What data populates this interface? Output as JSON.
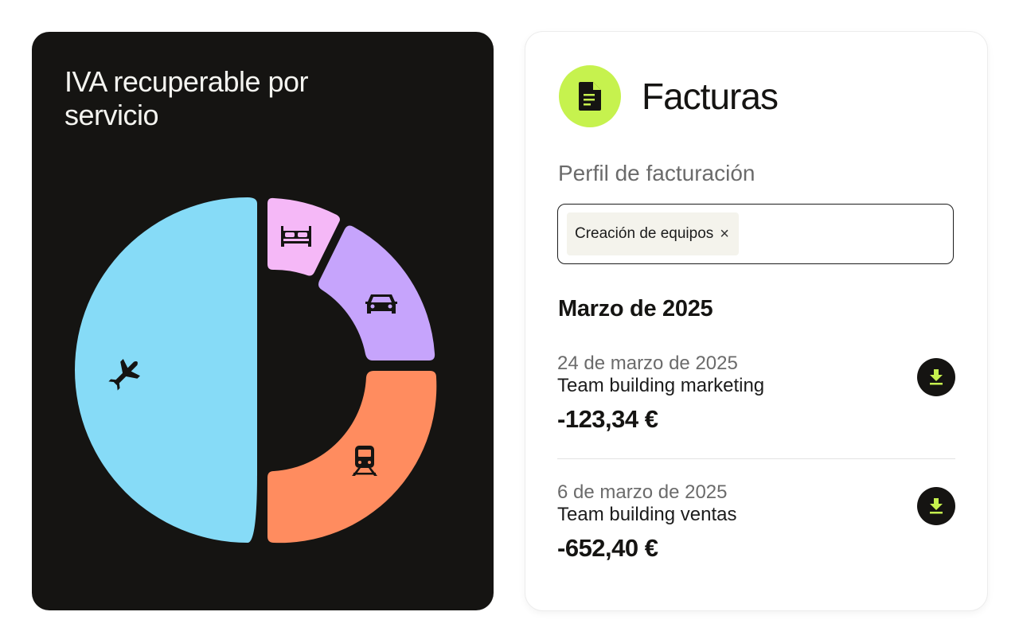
{
  "left_card": {
    "title": "IVA recuperable por servicio",
    "chart_data": {
      "type": "pie",
      "donut": true,
      "slices": [
        {
          "icon": "airplane-icon",
          "color": "#86dbf7",
          "value": 50
        },
        {
          "icon": "bed-icon",
          "color": "#f5b8f7",
          "value": 6
        },
        {
          "icon": "car-icon",
          "color": "#c6a4fc",
          "value": 17
        },
        {
          "icon": "train-icon",
          "color": "#ff8c5f",
          "value": 27
        }
      ]
    }
  },
  "right_card": {
    "title": "Facturas",
    "icon": "document-icon",
    "accent_color": "#c6f24e",
    "profile_label": "Perfil de facturación",
    "selected_tag": "Creación de equipos",
    "remove_tag_glyph": "×",
    "month_heading": "Marzo de 2025",
    "invoices": [
      {
        "date": "24 de marzo de 2025",
        "name": "Team building marketing",
        "amount": "-123,34 €",
        "action_icon": "download-icon"
      },
      {
        "date": "6 de marzo de 2025",
        "name": "Team building ventas",
        "amount": "-652,40 €",
        "action_icon": "download-icon"
      }
    ]
  }
}
